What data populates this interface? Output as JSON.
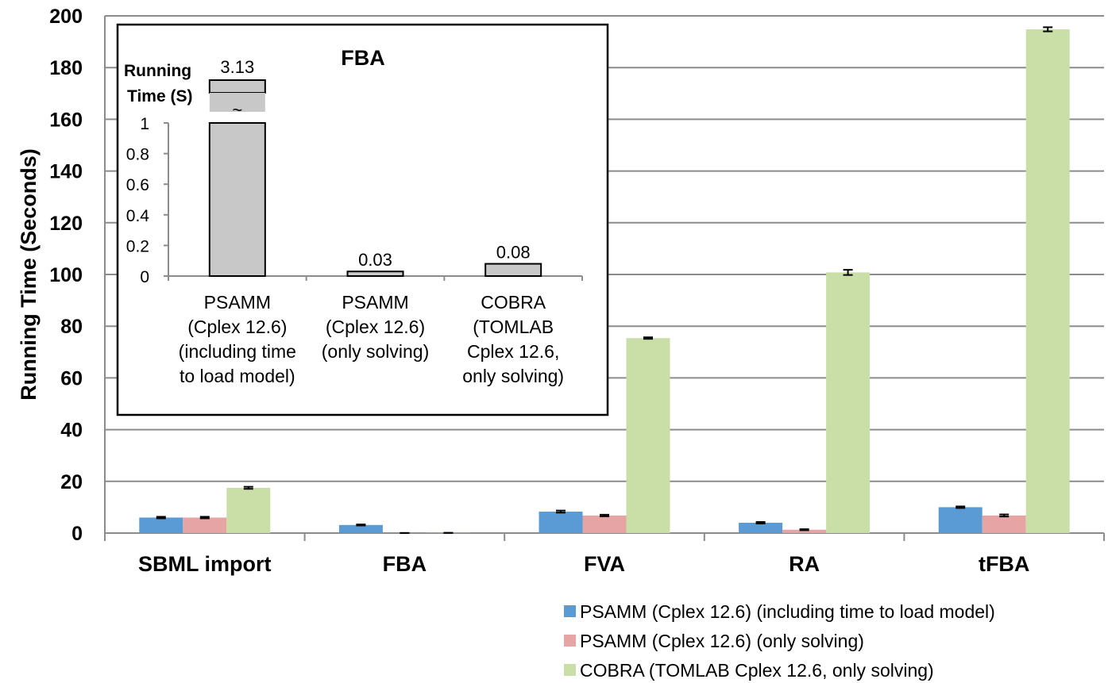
{
  "chart_data": [
    {
      "type": "bar",
      "title": "",
      "xlabel": "",
      "ylabel": "Running Time (Seconds)",
      "ylim": [
        0,
        200
      ],
      "yticks": [
        0,
        20,
        40,
        60,
        80,
        100,
        120,
        140,
        160,
        180,
        200
      ],
      "grid": true,
      "legend_position": "bottom-right",
      "categories": [
        "SBML import",
        "FBA",
        "FVA",
        "RA",
        "tFBA"
      ],
      "series": [
        {
          "name": "PSAMM (Cplex 12.6) (including time to load model)",
          "color": "#5b9bd5",
          "values": [
            6.0,
            3.13,
            8.3,
            4.0,
            10.0
          ],
          "errors": [
            0.3,
            0.2,
            0.4,
            0.3,
            0.3
          ]
        },
        {
          "name": "PSAMM (Cplex 12.6) (only solving)",
          "color": "#e6a5a4",
          "values": [
            6.0,
            0.03,
            6.8,
            1.3,
            6.8
          ],
          "errors": [
            0.3,
            0.01,
            0.3,
            0.2,
            0.4
          ]
        },
        {
          "name": "COBRA (TOMLAB Cplex 12.6, only solving)",
          "color": "#cadfa8",
          "values": [
            17.5,
            0.08,
            75.4,
            100.8,
            194.8
          ],
          "errors": [
            0.4,
            0.01,
            0.3,
            1.0,
            0.8
          ]
        }
      ]
    },
    {
      "type": "bar",
      "title": "FBA",
      "ylabel_lines": [
        "Running",
        "Time (S)"
      ],
      "ylim": [
        0,
        1
      ],
      "yticks": [
        "0",
        "0.2",
        "0.4",
        "0.6",
        "0.8",
        "1"
      ],
      "axis_break_symbol": "~",
      "categories": [
        [
          "PSAMM",
          "(Cplex 12.6)",
          "(including time",
          "to load model)"
        ],
        [
          "PSAMM",
          "(Cplex 12.6)",
          "(only solving)"
        ],
        [
          "COBRA",
          "(TOMLAB",
          "Cplex 12.6,",
          "only solving)"
        ]
      ],
      "values": [
        3.13,
        0.03,
        0.08
      ],
      "value_labels": [
        "3.13",
        "0.03",
        "0.08"
      ],
      "bar_color": "#c8c8c8"
    }
  ]
}
